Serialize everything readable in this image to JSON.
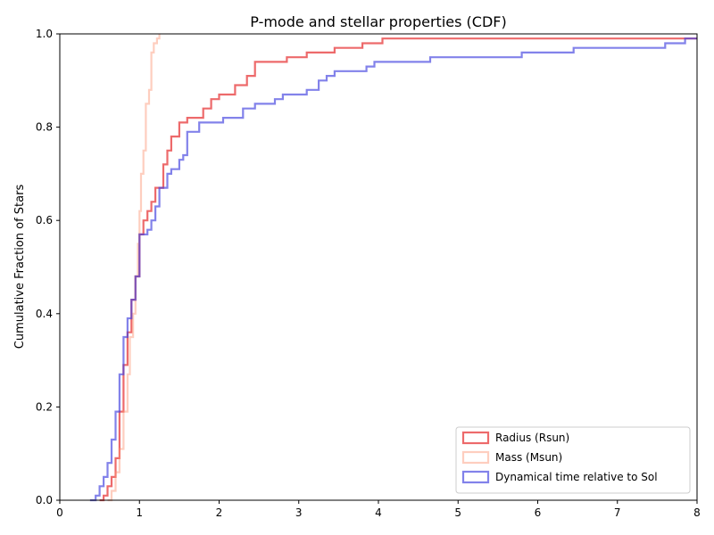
{
  "chart_data": {
    "type": "line",
    "title": "P-mode and stellar properties (CDF)",
    "xlabel": "",
    "ylabel": "Cumulative Fraction of Stars",
    "xlim": [
      0,
      8
    ],
    "ylim": [
      0,
      1
    ],
    "x_ticks": [
      "0",
      "1",
      "2",
      "3",
      "4",
      "5",
      "6",
      "7",
      "8"
    ],
    "y_ticks": [
      "0.0",
      "0.2",
      "0.4",
      "0.6",
      "0.8",
      "1.0"
    ],
    "grid": false,
    "legend_position": "lower-right",
    "series": [
      {
        "name": "Radius (Rsun)",
        "color": "#e41a1c",
        "points": [
          [
            0.5,
            0.0
          ],
          [
            0.55,
            0.01
          ],
          [
            0.6,
            0.03
          ],
          [
            0.65,
            0.05
          ],
          [
            0.7,
            0.09
          ],
          [
            0.75,
            0.19
          ],
          [
            0.8,
            0.29
          ],
          [
            0.85,
            0.36
          ],
          [
            0.9,
            0.43
          ],
          [
            0.95,
            0.48
          ],
          [
            1.0,
            0.57
          ],
          [
            1.05,
            0.6
          ],
          [
            1.1,
            0.62
          ],
          [
            1.15,
            0.64
          ],
          [
            1.2,
            0.67
          ],
          [
            1.3,
            0.72
          ],
          [
            1.35,
            0.75
          ],
          [
            1.4,
            0.78
          ],
          [
            1.5,
            0.81
          ],
          [
            1.6,
            0.82
          ],
          [
            1.8,
            0.84
          ],
          [
            1.9,
            0.86
          ],
          [
            2.0,
            0.87
          ],
          [
            2.2,
            0.89
          ],
          [
            2.35,
            0.91
          ],
          [
            2.45,
            0.94
          ],
          [
            2.85,
            0.95
          ],
          [
            3.1,
            0.96
          ],
          [
            3.45,
            0.97
          ],
          [
            3.8,
            0.98
          ],
          [
            4.05,
            0.99
          ],
          [
            8.0,
            0.99
          ]
        ]
      },
      {
        "name": "Mass (Msun)",
        "color": "#fc9272",
        "points": [
          [
            0.6,
            0.0
          ],
          [
            0.65,
            0.02
          ],
          [
            0.7,
            0.06
          ],
          [
            0.75,
            0.11
          ],
          [
            0.8,
            0.19
          ],
          [
            0.85,
            0.27
          ],
          [
            0.88,
            0.35
          ],
          [
            0.92,
            0.4
          ],
          [
            0.95,
            0.48
          ],
          [
            0.98,
            0.55
          ],
          [
            1.0,
            0.62
          ],
          [
            1.02,
            0.7
          ],
          [
            1.05,
            0.75
          ],
          [
            1.08,
            0.85
          ],
          [
            1.12,
            0.88
          ],
          [
            1.15,
            0.96
          ],
          [
            1.18,
            0.98
          ],
          [
            1.22,
            0.99
          ],
          [
            1.25,
            1.0
          ]
        ]
      },
      {
        "name": "Dynamical time relative to Sol",
        "color": "#3f3fdf",
        "points": [
          [
            0.38,
            0.0
          ],
          [
            0.45,
            0.01
          ],
          [
            0.5,
            0.03
          ],
          [
            0.55,
            0.05
          ],
          [
            0.6,
            0.08
          ],
          [
            0.65,
            0.13
          ],
          [
            0.7,
            0.19
          ],
          [
            0.75,
            0.27
          ],
          [
            0.8,
            0.35
          ],
          [
            0.85,
            0.39
          ],
          [
            0.9,
            0.43
          ],
          [
            0.95,
            0.48
          ],
          [
            1.0,
            0.57
          ],
          [
            1.1,
            0.58
          ],
          [
            1.15,
            0.6
          ],
          [
            1.2,
            0.63
          ],
          [
            1.25,
            0.67
          ],
          [
            1.35,
            0.7
          ],
          [
            1.4,
            0.71
          ],
          [
            1.5,
            0.73
          ],
          [
            1.55,
            0.74
          ],
          [
            1.6,
            0.79
          ],
          [
            1.75,
            0.81
          ],
          [
            2.05,
            0.82
          ],
          [
            2.3,
            0.84
          ],
          [
            2.45,
            0.85
          ],
          [
            2.7,
            0.86
          ],
          [
            2.8,
            0.87
          ],
          [
            3.1,
            0.88
          ],
          [
            3.25,
            0.9
          ],
          [
            3.35,
            0.91
          ],
          [
            3.45,
            0.92
          ],
          [
            3.85,
            0.93
          ],
          [
            3.95,
            0.94
          ],
          [
            4.65,
            0.95
          ],
          [
            5.8,
            0.96
          ],
          [
            6.45,
            0.97
          ],
          [
            7.6,
            0.98
          ],
          [
            7.85,
            0.99
          ],
          [
            8.0,
            0.99
          ]
        ]
      }
    ]
  }
}
